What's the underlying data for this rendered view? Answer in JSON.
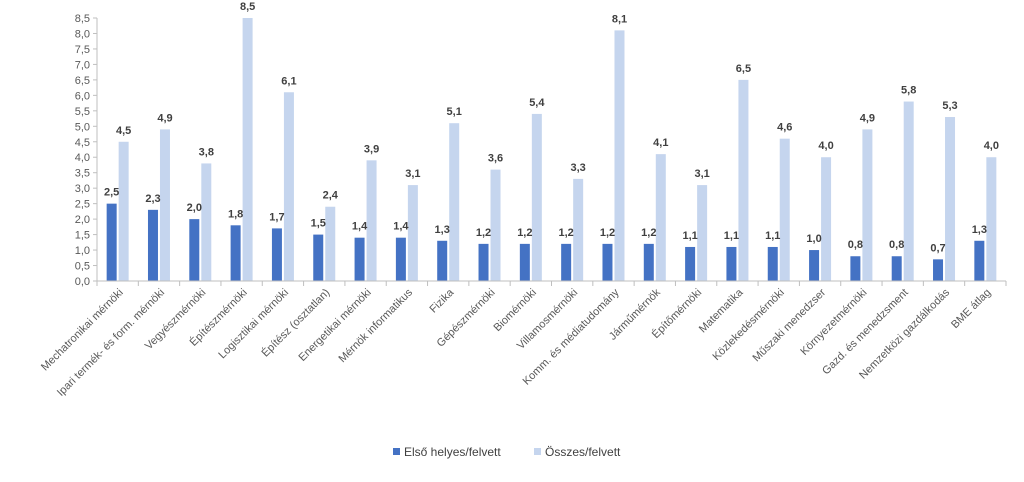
{
  "chart_data": {
    "type": "bar",
    "title": "",
    "xlabel": "",
    "ylabel": "",
    "ylim": [
      0,
      8.5
    ],
    "yticks": [
      "0,0",
      "0,5",
      "1,0",
      "1,5",
      "2,0",
      "2,5",
      "3,0",
      "3,5",
      "4,0",
      "4,5",
      "5,0",
      "5,5",
      "6,0",
      "6,5",
      "7,0",
      "7,5",
      "8,0",
      "8,5"
    ],
    "grid": false,
    "legend_position": "bottom",
    "categories": [
      "Mechatronikai mérnöki",
      "Ipari termék- és form. mérnöki",
      "Vegyészmérnöki",
      "Építészmérnöki",
      "Logisztikai mérnöki",
      "Építész (osztatlan)",
      "Energetikai mérnöki",
      "Mérnök informatikus",
      "Fizika",
      "Gépészmérnöki",
      "Biomérnöki",
      "Villamosmérnöki",
      "Komm. és médiatudomány",
      "Járműmérnök",
      "Építőmérnöki",
      "Matematika",
      "Közlekedésmérnöki",
      "Műszaki menedzser",
      "Környezetmérnöki",
      "Gazd. és menedzsment",
      "Nemzetközi gazdálkodás",
      "BME átlag"
    ],
    "series": [
      {
        "name": "Első helyes/felvett",
        "color": "#4472C4",
        "values": [
          2.5,
          2.3,
          2.0,
          1.8,
          1.7,
          1.5,
          1.4,
          1.4,
          1.3,
          1.2,
          1.2,
          1.2,
          1.2,
          1.2,
          1.1,
          1.1,
          1.1,
          1.0,
          0.8,
          0.8,
          0.7,
          1.3
        ],
        "labels": [
          "2,5",
          "2,3",
          "2,0",
          "1,8",
          "1,7",
          "1,5",
          "1,4",
          "1,4",
          "1,3",
          "1,2",
          "1,2",
          "1,2",
          "1,2",
          "1,2",
          "1,1",
          "1,1",
          "1,1",
          "1,0",
          "0,8",
          "0,8",
          "0,7",
          "1,3"
        ]
      },
      {
        "name": "Összes/felvett",
        "color": "#C5D5EE",
        "values": [
          4.5,
          4.9,
          3.8,
          8.5,
          6.1,
          2.4,
          3.9,
          3.1,
          5.1,
          3.6,
          5.4,
          3.3,
          8.1,
          4.1,
          3.1,
          6.5,
          4.6,
          4.0,
          4.9,
          5.8,
          5.3,
          4.0
        ],
        "labels": [
          "4,5",
          "4,9",
          "3,8",
          "8,5",
          "6,1",
          "2,4",
          "3,9",
          "3,1",
          "5,1",
          "3,6",
          "5,4",
          "3,3",
          "8,1",
          "4,1",
          "3,1",
          "6,5",
          "4,6",
          "4,0",
          "4,9",
          "5,8",
          "5,3",
          "4,0"
        ]
      }
    ]
  }
}
